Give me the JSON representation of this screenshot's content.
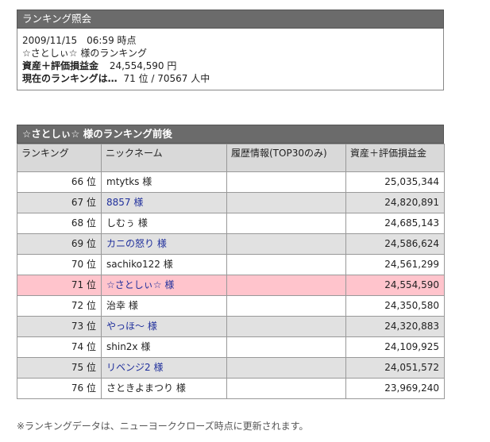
{
  "panel1": {
    "title": "ランキング照会",
    "datetime": "2009/11/15　06:59 時点",
    "ranking_of": "☆さとしぃ☆ 様のランキング",
    "asset_label": "資産＋評価損益金",
    "asset_value": "24,554,590 円",
    "current_label": "現在のランキングは…",
    "current_value": "71 位 / 70567 人中"
  },
  "panel2": {
    "title": "☆さとしぃ☆ 様のランキング前後",
    "headers": [
      "ランキング",
      "ニックネーム",
      "履歴情報(TOP30のみ)",
      "資産＋評価損益金"
    ],
    "rows": [
      {
        "rank": "66 位",
        "nickname": "mtytks 様",
        "link": false,
        "history": "",
        "value": "25,035,344",
        "highlight": false
      },
      {
        "rank": "67 位",
        "nickname": "8857 様",
        "link": true,
        "history": "",
        "value": "24,820,891",
        "highlight": false
      },
      {
        "rank": "68 位",
        "nickname": "しむぅ 様",
        "link": false,
        "history": "",
        "value": "24,685,143",
        "highlight": false
      },
      {
        "rank": "69 位",
        "nickname": "カニの怒り 様",
        "link": true,
        "history": "",
        "value": "24,586,624",
        "highlight": false
      },
      {
        "rank": "70 位",
        "nickname": "sachiko122 様",
        "link": false,
        "history": "",
        "value": "24,561,299",
        "highlight": false
      },
      {
        "rank": "71 位",
        "nickname": "☆さとしぃ☆ 様",
        "link": true,
        "history": "",
        "value": "24,554,590",
        "highlight": true
      },
      {
        "rank": "72 位",
        "nickname": "治幸 様",
        "link": false,
        "history": "",
        "value": "24,350,580",
        "highlight": false
      },
      {
        "rank": "73 位",
        "nickname": "やっほ～ 様",
        "link": true,
        "history": "",
        "value": "24,320,883",
        "highlight": false
      },
      {
        "rank": "74 位",
        "nickname": "shin2x 様",
        "link": false,
        "history": "",
        "value": "24,109,925",
        "highlight": false
      },
      {
        "rank": "75 位",
        "nickname": "リベンジ2 様",
        "link": true,
        "history": "",
        "value": "24,051,572",
        "highlight": false
      },
      {
        "rank": "76 位",
        "nickname": "さときよまつり 様",
        "link": false,
        "history": "",
        "value": "23,969,240",
        "highlight": false
      }
    ]
  },
  "footnote": "※ランキングデータは、ニューヨーククローズ時点に更新されます。",
  "colors": {
    "header_bg": "#6b6b6b",
    "row_alt": "#e1e1e1",
    "row_highlight": "#ffc4cc",
    "link": "#1f2f9c"
  }
}
